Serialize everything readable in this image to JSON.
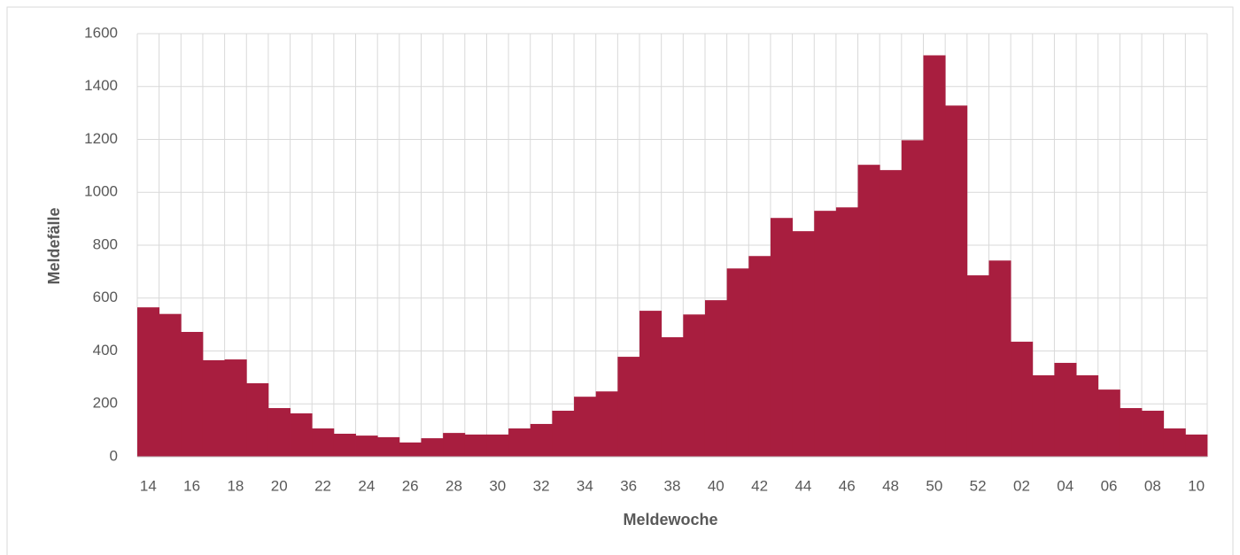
{
  "chart_data": {
    "type": "bar",
    "x_label": "Meldewoche",
    "y_label": "Meldefälle",
    "categories": [
      "14",
      null,
      "16",
      null,
      "18",
      null,
      "20",
      null,
      "22",
      null,
      "24",
      null,
      "26",
      null,
      "28",
      null,
      "30",
      null,
      "32",
      null,
      "34",
      null,
      "36",
      null,
      "38",
      null,
      "40",
      null,
      "42",
      null,
      "44",
      null,
      "46",
      null,
      "48",
      null,
      "50",
      null,
      "52",
      null,
      "02",
      null,
      "04",
      null,
      "06",
      null,
      "08",
      null,
      "10"
    ],
    "values": [
      565,
      540,
      472,
      365,
      368,
      278,
      184,
      164,
      107,
      87,
      80,
      74,
      54,
      70,
      90,
      84,
      84,
      107,
      124,
      174,
      227,
      247,
      378,
      552,
      452,
      538,
      592,
      712,
      759,
      903,
      853,
      930,
      943,
      1104,
      1084,
      1197,
      1518,
      1328,
      686,
      742,
      435,
      308,
      355,
      308,
      254,
      184,
      174,
      107,
      84
    ],
    "color": "#a81e3f",
    "ylim": [
      0,
      1600
    ],
    "yticks": [
      0,
      200,
      400,
      600,
      800,
      1000,
      1200,
      1400,
      1600
    ],
    "grid": true
  }
}
